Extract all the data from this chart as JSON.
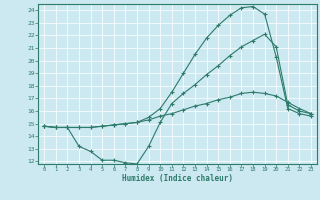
{
  "title": "",
  "xlabel": "Humidex (Indice chaleur)",
  "bg_color": "#cce8f0",
  "line_color": "#2d7b6b",
  "xlim": [
    -0.5,
    23.5
  ],
  "ylim": [
    11.8,
    24.5
  ],
  "xticks": [
    0,
    1,
    2,
    3,
    4,
    5,
    6,
    7,
    8,
    9,
    10,
    11,
    12,
    13,
    14,
    15,
    16,
    17,
    18,
    19,
    20,
    21,
    22,
    23
  ],
  "yticks": [
    12,
    13,
    14,
    15,
    16,
    17,
    18,
    19,
    20,
    21,
    22,
    23,
    24
  ],
  "series1_x": [
    0,
    1,
    2,
    3,
    4,
    5,
    6,
    7,
    8,
    9,
    10,
    11,
    12,
    13,
    14,
    15,
    16,
    17,
    18,
    19,
    20,
    21,
    22,
    23
  ],
  "series1_y": [
    14.8,
    14.7,
    14.7,
    14.7,
    14.7,
    14.8,
    14.9,
    15.0,
    15.1,
    15.3,
    15.6,
    15.8,
    16.1,
    16.4,
    16.6,
    16.9,
    17.1,
    17.4,
    17.5,
    17.4,
    17.2,
    16.7,
    16.2,
    15.8
  ],
  "series2_x": [
    0,
    1,
    2,
    3,
    4,
    5,
    6,
    7,
    8,
    9,
    10,
    11,
    12,
    13,
    14,
    15,
    16,
    17,
    18,
    19,
    20,
    21,
    22,
    23
  ],
  "series2_y": [
    14.8,
    14.7,
    14.7,
    14.7,
    14.7,
    14.8,
    14.9,
    15.0,
    15.1,
    15.5,
    16.2,
    17.5,
    19.0,
    20.5,
    21.8,
    22.8,
    23.6,
    24.2,
    24.3,
    23.7,
    20.3,
    16.2,
    15.8,
    15.6
  ],
  "series3_x": [
    0,
    1,
    2,
    3,
    4,
    5,
    6,
    7,
    8,
    9,
    10,
    11,
    12,
    13,
    14,
    15,
    16,
    17,
    18,
    19,
    20,
    21,
    22,
    23
  ],
  "series3_y": [
    14.8,
    14.7,
    14.7,
    13.2,
    12.8,
    12.1,
    12.1,
    11.9,
    11.8,
    13.2,
    15.1,
    16.6,
    17.4,
    18.1,
    18.9,
    19.6,
    20.4,
    21.1,
    21.6,
    22.1,
    21.1,
    16.5,
    16.0,
    15.8
  ]
}
